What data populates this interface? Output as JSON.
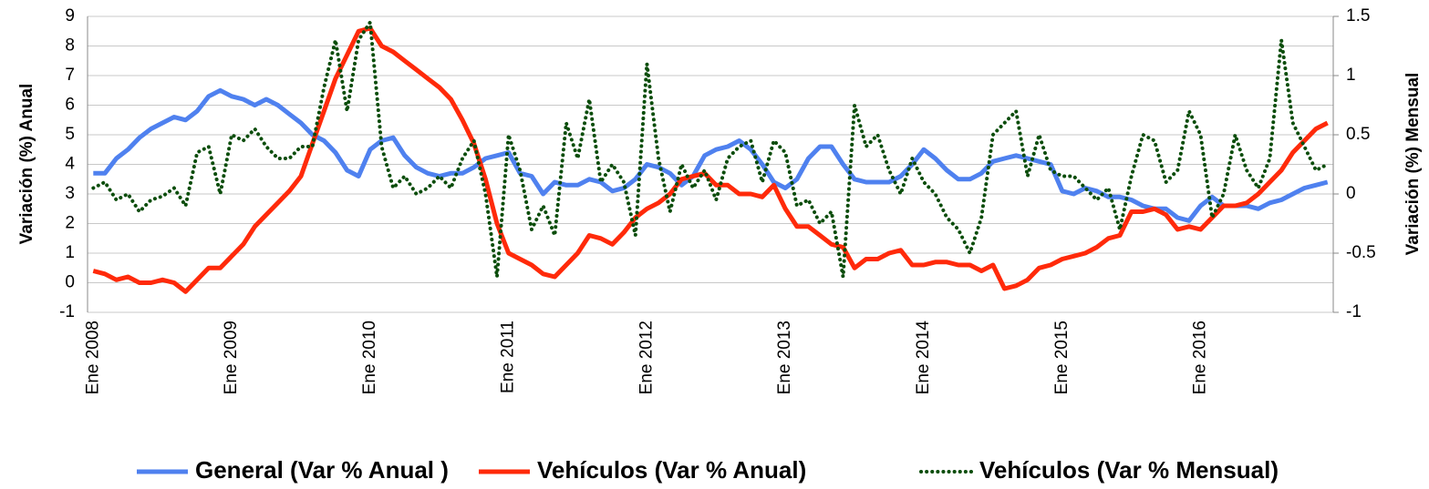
{
  "chart_data": {
    "type": "line",
    "y_label": "Variación (%) Anual",
    "y2_label": "Variación (%) Mensual",
    "categories": [
      "Ene 2008",
      null,
      null,
      null,
      null,
      null,
      null,
      null,
      null,
      null,
      null,
      null,
      "Ene 2009",
      null,
      null,
      null,
      null,
      null,
      null,
      null,
      null,
      null,
      null,
      null,
      "Ene 2010",
      null,
      null,
      null,
      null,
      null,
      null,
      null,
      null,
      null,
      null,
      null,
      "Ene 2011",
      null,
      null,
      null,
      null,
      null,
      null,
      null,
      null,
      null,
      null,
      null,
      "Ene 2012",
      null,
      null,
      null,
      null,
      null,
      null,
      null,
      null,
      null,
      null,
      null,
      "Ene 2013",
      null,
      null,
      null,
      null,
      null,
      null,
      null,
      null,
      null,
      null,
      null,
      "Ene 2014",
      null,
      null,
      null,
      null,
      null,
      null,
      null,
      null,
      null,
      null,
      null,
      "Ene 2015",
      null,
      null,
      null,
      null,
      null,
      null,
      null,
      null,
      null,
      null,
      null,
      "Ene 2016",
      null,
      null,
      null,
      null,
      null,
      null,
      null,
      null,
      null,
      null,
      null
    ],
    "series": [
      {
        "name": "General (Var % Anual )",
        "color": "#4f81ef",
        "style": "solid",
        "values": [
          3.7,
          3.7,
          4.2,
          4.5,
          4.9,
          5.2,
          5.4,
          5.6,
          5.5,
          5.8,
          6.3,
          6.5,
          6.3,
          6.2,
          6.0,
          6.2,
          6.0,
          5.7,
          5.4,
          5.0,
          4.8,
          4.4,
          3.8,
          3.6,
          4.5,
          4.8,
          4.9,
          4.3,
          3.9,
          3.7,
          3.6,
          3.7,
          3.7,
          3.9,
          4.2,
          4.3,
          4.4,
          3.7,
          3.6,
          3.0,
          3.4,
          3.3,
          3.3,
          3.5,
          3.4,
          3.1,
          3.2,
          3.5,
          4.0,
          3.9,
          3.7,
          3.3,
          3.6,
          4.3,
          4.5,
          4.6,
          4.8,
          4.5,
          4.0,
          3.4,
          3.2,
          3.5,
          4.2,
          4.6,
          4.6,
          4.0,
          3.5,
          3.4,
          3.4,
          3.4,
          3.6,
          4.0,
          4.5,
          4.2,
          3.8,
          3.5,
          3.5,
          3.7,
          4.1,
          4.2,
          4.3,
          4.2,
          4.1,
          4.0,
          3.1,
          3.0,
          3.2,
          3.1,
          2.9,
          2.9,
          2.8,
          2.6,
          2.5,
          2.5,
          2.2,
          2.1,
          2.6,
          2.9,
          2.6,
          2.6,
          2.6,
          2.5,
          2.7,
          2.8,
          3.0,
          3.2,
          3.3,
          3.4
        ]
      },
      {
        "name": "Vehículos (Var % Anual)",
        "color": "#ff2a0a",
        "style": "solid",
        "values": [
          0.4,
          0.3,
          0.1,
          0.2,
          0.0,
          0.0,
          0.1,
          0.0,
          -0.3,
          0.1,
          0.5,
          0.5,
          0.9,
          1.3,
          1.9,
          2.3,
          2.7,
          3.1,
          3.6,
          4.7,
          5.8,
          6.9,
          7.7,
          8.5,
          8.6,
          8.0,
          7.8,
          7.5,
          7.2,
          6.9,
          6.6,
          6.2,
          5.5,
          4.7,
          3.5,
          2.0,
          1.0,
          0.8,
          0.6,
          0.3,
          0.2,
          0.6,
          1.0,
          1.6,
          1.5,
          1.3,
          1.7,
          2.2,
          2.5,
          2.7,
          3.0,
          3.5,
          3.6,
          3.7,
          3.3,
          3.3,
          3.0,
          3.0,
          2.9,
          3.3,
          2.5,
          1.9,
          1.9,
          1.6,
          1.3,
          1.2,
          0.5,
          0.8,
          0.8,
          1.0,
          1.1,
          0.6,
          0.6,
          0.7,
          0.7,
          0.6,
          0.6,
          0.4,
          0.6,
          -0.2,
          -0.1,
          0.1,
          0.5,
          0.6,
          0.8,
          0.9,
          1.0,
          1.2,
          1.5,
          1.6,
          2.4,
          2.4,
          2.5,
          2.3,
          1.8,
          1.9,
          1.8,
          2.2,
          2.6,
          2.6,
          2.7,
          3.0,
          3.4,
          3.8,
          4.4,
          4.8,
          5.2,
          5.4
        ]
      },
      {
        "name": "Vehículos (Var % Mensual)",
        "color": "#0b4d0b",
        "style": "dotted",
        "axis": "y2",
        "values": [
          0.05,
          0.1,
          -0.05,
          0.0,
          -0.15,
          -0.05,
          -0.02,
          0.05,
          -0.1,
          0.35,
          0.4,
          0.0,
          0.5,
          0.45,
          0.55,
          0.4,
          0.3,
          0.3,
          0.4,
          0.4,
          0.9,
          1.3,
          0.7,
          1.3,
          1.45,
          0.4,
          0.05,
          0.15,
          0.0,
          0.05,
          0.15,
          0.05,
          0.3,
          0.45,
          0.0,
          -0.7,
          0.5,
          0.2,
          -0.3,
          -0.1,
          -0.35,
          0.6,
          0.3,
          0.8,
          0.1,
          0.25,
          0.1,
          -0.35,
          1.1,
          0.3,
          -0.15,
          0.25,
          0.05,
          0.2,
          -0.05,
          0.3,
          0.4,
          0.45,
          0.1,
          0.45,
          0.35,
          -0.1,
          -0.05,
          -0.25,
          -0.15,
          -0.7,
          0.75,
          0.4,
          0.5,
          0.2,
          0.0,
          0.3,
          0.1,
          0.0,
          -0.2,
          -0.3,
          -0.5,
          -0.2,
          0.5,
          0.6,
          0.7,
          0.15,
          0.5,
          0.2,
          0.15,
          0.15,
          0.05,
          -0.05,
          0.05,
          -0.3,
          0.15,
          0.5,
          0.45,
          0.1,
          0.2,
          0.7,
          0.5,
          -0.2,
          0.0,
          0.5,
          0.2,
          0.05,
          0.3,
          1.3,
          0.6,
          0.4,
          0.2,
          0.25
        ]
      }
    ],
    "ylim": [
      -1,
      9
    ],
    "yticks": [
      -1,
      0,
      1,
      2,
      3,
      4,
      5,
      6,
      7,
      8,
      9
    ],
    "y2lim": [
      -1,
      1.5
    ],
    "y2ticks": [
      -1,
      -0.5,
      0,
      0.5,
      1,
      1.5
    ],
    "grid": true,
    "legend": "bottom"
  }
}
